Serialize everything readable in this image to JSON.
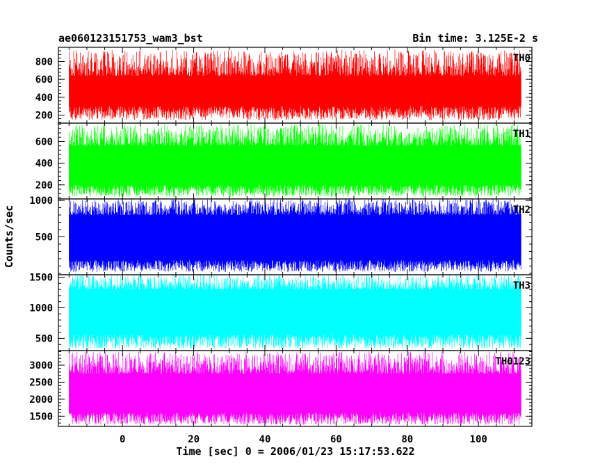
{
  "chart_data": {
    "type": "line",
    "title": "ae060123151753_wam3_bst",
    "subtitle": "Bin time: 3.125E-2 s",
    "xlabel": "Time [sec] 0 = 2006/01/23 15:17:53.622",
    "ylabel": "Counts/sec",
    "xlim": [
      -18,
      115
    ],
    "data_x_range": [
      -15,
      112
    ],
    "bin_time": 0.03125,
    "x_ticks": [
      0,
      20,
      40,
      60,
      80,
      100
    ],
    "x_tick_labels": [
      "0",
      "20",
      "40",
      "60",
      "80",
      "100"
    ],
    "legend": "panel labels, top-right inside each panel",
    "grid": false,
    "panels": [
      {
        "name": "TH0",
        "color": "#ff0000",
        "ylim": [
          110,
          960
        ],
        "yticks": [
          200,
          400,
          600,
          800
        ],
        "ytick_labels": [
          "200",
          "400",
          "600",
          "800"
        ],
        "mean": 460,
        "low_range": [
          145,
          300
        ],
        "high_range": [
          640,
          930
        ]
      },
      {
        "name": "TH1",
        "color": "#00ff00",
        "ylim": [
          70,
          770
        ],
        "yticks": [
          200,
          400,
          600
        ],
        "ytick_labels": [
          "200",
          "400",
          "600"
        ],
        "mean": 390,
        "low_range": [
          90,
          200
        ],
        "high_range": [
          560,
          760
        ]
      },
      {
        "name": "TH2",
        "color": "#0000ff",
        "ylim": [
          -20,
          1020
        ],
        "yticks": [
          500,
          1000
        ],
        "ytick_labels": [
          "500",
          "1000"
        ],
        "mean": 500,
        "low_range": [
          20,
          180
        ],
        "high_range": [
          800,
          1020
        ]
      },
      {
        "name": "TH3",
        "color": "#00ffff",
        "ylim": [
          300,
          1540
        ],
        "yticks": [
          500,
          1000,
          1500
        ],
        "ytick_labels": [
          "500",
          "1000",
          "1500"
        ],
        "mean": 880,
        "low_range": [
          330,
          560
        ],
        "high_range": [
          1300,
          1540
        ]
      },
      {
        "name": "TH0123",
        "color": "#ff00ff",
        "ylim": [
          1200,
          3430
        ],
        "yticks": [
          1500,
          2000,
          2500,
          3000
        ],
        "ytick_labels": [
          "1500",
          "2000",
          "2500",
          "3000"
        ],
        "mean": 2180,
        "low_range": [
          1250,
          1600
        ],
        "high_range": [
          2750,
          3400
        ]
      }
    ]
  }
}
